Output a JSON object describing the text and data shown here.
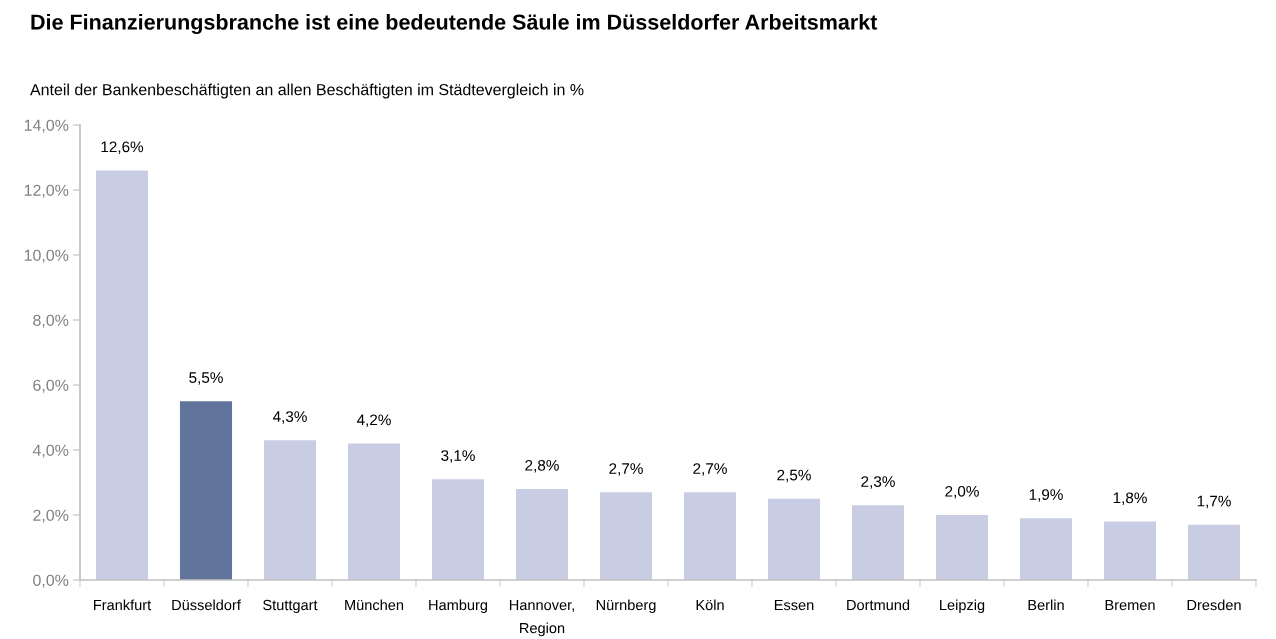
{
  "chart_data": {
    "type": "bar",
    "title": "Die Finanzierungsbranche ist eine bedeutende Säule im Düsseldorfer Arbeitsmarkt",
    "subtitle": "Anteil der Bankenbeschäftigten an allen Beschäftigten im Städtevergleich in %",
    "categories": [
      "Frankfurt",
      "Düsseldorf",
      "Stuttgart",
      "München",
      "Hamburg",
      "Hannover,\nRegion",
      "Nürnberg",
      "Köln",
      "Essen",
      "Dortmund",
      "Leipzig",
      "Berlin",
      "Bremen",
      "Dresden"
    ],
    "values": [
      12.6,
      5.5,
      4.3,
      4.2,
      3.1,
      2.8,
      2.7,
      2.7,
      2.5,
      2.3,
      2.0,
      1.9,
      1.8,
      1.7
    ],
    "colors": [
      "#c8cde3",
      "#61749c",
      "#c8cde3",
      "#c8cde3",
      "#c8cde3",
      "#c8cde3",
      "#c8cde3",
      "#c8cde3",
      "#c8cde3",
      "#c8cde3",
      "#c8cde3",
      "#c8cde3",
      "#c8cde3",
      "#c8cde3"
    ],
    "value_labels": [
      "12,6%",
      "5,5%",
      "4,3%",
      "4,2%",
      "3,1%",
      "2,8%",
      "2,7%",
      "2,7%",
      "2,5%",
      "2,3%",
      "2,0%",
      "1,9%",
      "1,8%",
      "1,7%"
    ],
    "ylim": [
      0,
      14
    ],
    "yticks": [
      {
        "value": 0,
        "label": "0,0%"
      },
      {
        "value": 2,
        "label": "2,0%"
      },
      {
        "value": 4,
        "label": "4,0%"
      },
      {
        "value": 6,
        "label": "6,0%"
      },
      {
        "value": 8,
        "label": "8,0%"
      },
      {
        "value": 10,
        "label": "10,0%"
      },
      {
        "value": 12,
        "label": "12,0%"
      },
      {
        "value": 14,
        "label": "14,0%"
      }
    ],
    "grid": false,
    "legend": false
  }
}
